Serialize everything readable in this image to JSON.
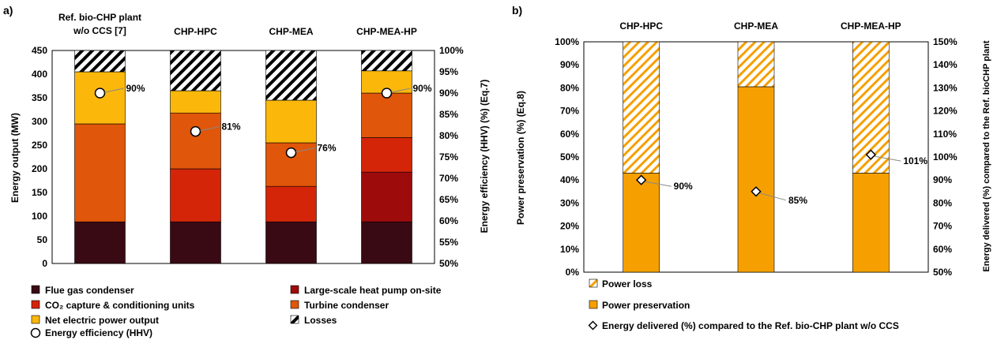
{
  "panel_a": {
    "label": "a)",
    "chart_data": {
      "type": "stacked-bar",
      "categories": [
        "Ref. bio-CHP plant\nw/o CCS [7]",
        "CHP-HPC",
        "CHP-MEA",
        "CHP-MEA-HP"
      ],
      "series": [
        {
          "name": "Flue gas condenser",
          "color": "#3a0a14",
          "pattern": "solid",
          "values": [
            88,
            88,
            88,
            88
          ]
        },
        {
          "name": "Large-scale heat pump on-site",
          "color": "#9e0b0b",
          "pattern": "solid",
          "values": [
            0,
            0,
            0,
            105
          ]
        },
        {
          "name": "CO₂ capture & conditioning units",
          "color": "#d42508",
          "pattern": "solid",
          "values": [
            0,
            112,
            75,
            73
          ]
        },
        {
          "name": "Turbine condenser",
          "color": "#e0560a",
          "pattern": "solid",
          "values": [
            207,
            118,
            92,
            94
          ]
        },
        {
          "name": "Net electric power output",
          "color": "#fbb80b",
          "pattern": "solid",
          "values": [
            110,
            47,
            90,
            47
          ]
        },
        {
          "name": "Losses",
          "color": "#000000",
          "pattern": "hatch",
          "values": [
            45,
            85,
            105,
            43
          ]
        }
      ],
      "efficiency": {
        "name": "Energy efficiency (HHV)",
        "values": [
          90,
          81,
          76,
          90
        ],
        "labels": [
          "90%",
          "81%",
          "76%",
          "90%"
        ]
      },
      "ylabel": "Energy output (MW)",
      "y2label": "Energy efficiency (HHV) (%) (Eq.7)",
      "ylim": [
        0,
        450
      ],
      "yticks": [
        "0",
        "50",
        "100",
        "150",
        "200",
        "250",
        "300",
        "350",
        "400",
        "450"
      ],
      "y2lim": [
        50,
        100
      ],
      "y2ticks": [
        "50%",
        "55%",
        "60%",
        "65%",
        "70%",
        "75%",
        "80%",
        "85%",
        "90%",
        "95%",
        "100%"
      ],
      "legend_order": [
        0,
        1,
        2,
        3,
        4,
        5
      ]
    }
  },
  "panel_b": {
    "label": "b)",
    "chart_data": {
      "type": "stacked-bar",
      "categories": [
        "CHP-HPC",
        "CHP-MEA",
        "CHP-MEA-HP"
      ],
      "series": [
        {
          "name": "Power preservation",
          "color": "#f5a000",
          "pattern": "solid",
          "values": [
            43,
            80.5,
            43
          ]
        },
        {
          "name": "Power loss",
          "color": "#f5a000",
          "pattern": "hatch",
          "values": [
            57,
            19.5,
            57
          ]
        }
      ],
      "delivered": {
        "name": "Energy delivered (%) compared to the Ref. bio-CHP plant w/o CCS",
        "values": [
          90,
          85,
          101
        ],
        "labels": [
          "90%",
          "85%",
          "101%"
        ]
      },
      "ylabel": "Power preservation (%) (Eq.8)",
      "y2label": "Energy delivered (%) compared to the Ref. bioCHP plant",
      "ylim": [
        0,
        100
      ],
      "yticks": [
        "0%",
        "10%",
        "20%",
        "30%",
        "40%",
        "50%",
        "60%",
        "70%",
        "80%",
        "90%",
        "100%"
      ],
      "y2lim": [
        50,
        150
      ],
      "y2ticks": [
        "50%",
        "60%",
        "70%",
        "80%",
        "90%",
        "100%",
        "110%",
        "120%",
        "130%",
        "140%",
        "150%"
      ]
    }
  }
}
